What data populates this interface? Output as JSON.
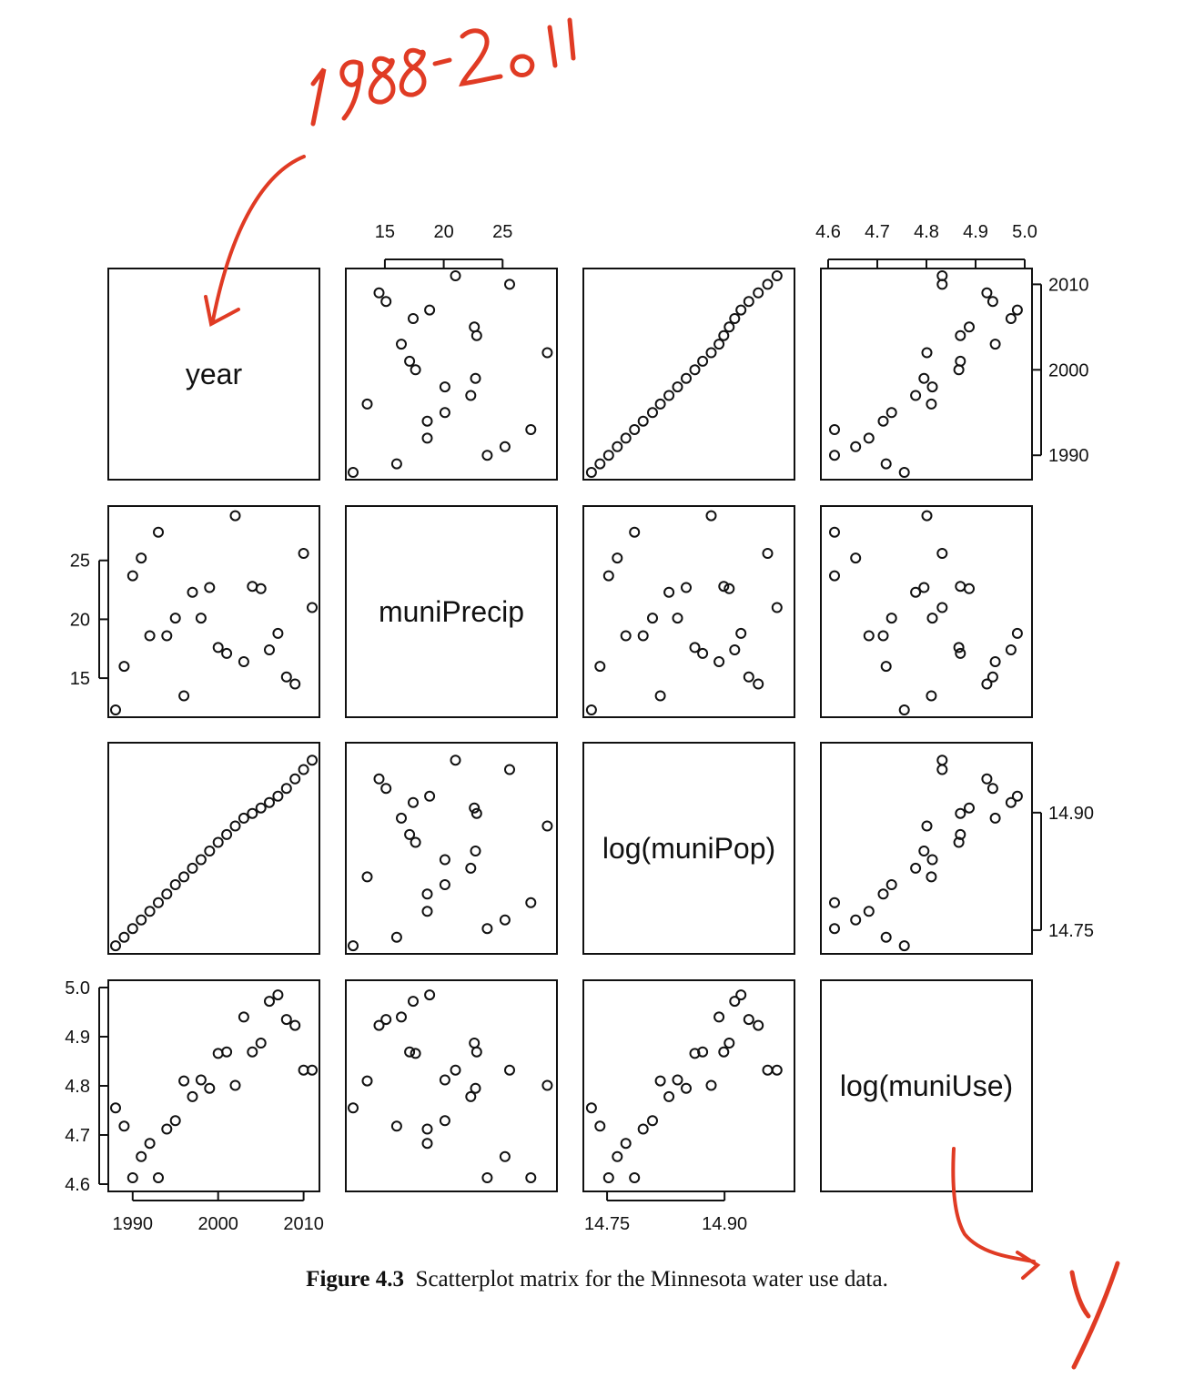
{
  "caption": {
    "prefix": "Figure 4.3",
    "text": "Scatterplot matrix for the Minnesota water use data."
  },
  "annotations": {
    "years_note": "1988-2011",
    "response_note": "y",
    "color": "#e03b24"
  },
  "chart_data": {
    "type": "scatter",
    "kind": "scatterplot-matrix",
    "variables": [
      "year",
      "muniPrecip",
      "log(muniPop)",
      "log(muniUse)"
    ],
    "axes": {
      "year": {
        "range": [
          1988,
          2011
        ],
        "ticks": [
          "1990",
          "2000",
          "2010"
        ],
        "tick_values": [
          1990,
          2000,
          2010
        ]
      },
      "muniPrecip": {
        "range": [
          12.3,
          29.0
        ],
        "ticks": [
          "15",
          "20",
          "25"
        ],
        "tick_values": [
          15,
          20,
          25
        ]
      },
      "log(muniPop)": {
        "range": [
          14.729,
          14.98
        ],
        "ticks": [
          "14.75",
          "14.90"
        ],
        "tick_values": [
          14.75,
          14.9
        ]
      },
      "log(muniUse)": {
        "range": [
          4.6,
          5.0
        ],
        "ticks": [
          "4.6",
          "4.7",
          "4.8",
          "4.9",
          "5.0"
        ],
        "tick_values": [
          4.6,
          4.7,
          4.8,
          4.9,
          5.0
        ]
      }
    },
    "data": {
      "year": [
        1988,
        1989,
        1990,
        1991,
        1992,
        1993,
        1994,
        1995,
        1996,
        1997,
        1998,
        1999,
        2000,
        2001,
        2002,
        2003,
        2004,
        2005,
        2006,
        2007,
        2008,
        2009,
        2010,
        2011
      ],
      "muniPrecip": [
        12.3,
        16.0,
        23.7,
        25.2,
        18.6,
        27.4,
        18.6,
        20.1,
        13.5,
        22.3,
        20.1,
        22.7,
        17.6,
        17.1,
        28.8,
        16.4,
        22.8,
        22.6,
        17.4,
        18.8,
        15.1,
        14.5,
        25.6,
        21.0
      ],
      "log(muniPop)": [
        14.73,
        14.741,
        14.752,
        14.763,
        14.774,
        14.785,
        14.796,
        14.808,
        14.818,
        14.829,
        14.84,
        14.851,
        14.862,
        14.872,
        14.883,
        14.893,
        14.899,
        14.906,
        14.913,
        14.921,
        14.931,
        14.943,
        14.955,
        14.967
      ],
      "log(muniUse)": [
        4.755,
        4.718,
        4.613,
        4.656,
        4.683,
        4.613,
        4.712,
        4.729,
        4.81,
        4.778,
        4.812,
        4.795,
        4.866,
        4.869,
        4.801,
        4.94,
        4.869,
        4.887,
        4.972,
        4.985,
        4.935,
        4.923,
        4.832,
        4.832
      ]
    }
  }
}
